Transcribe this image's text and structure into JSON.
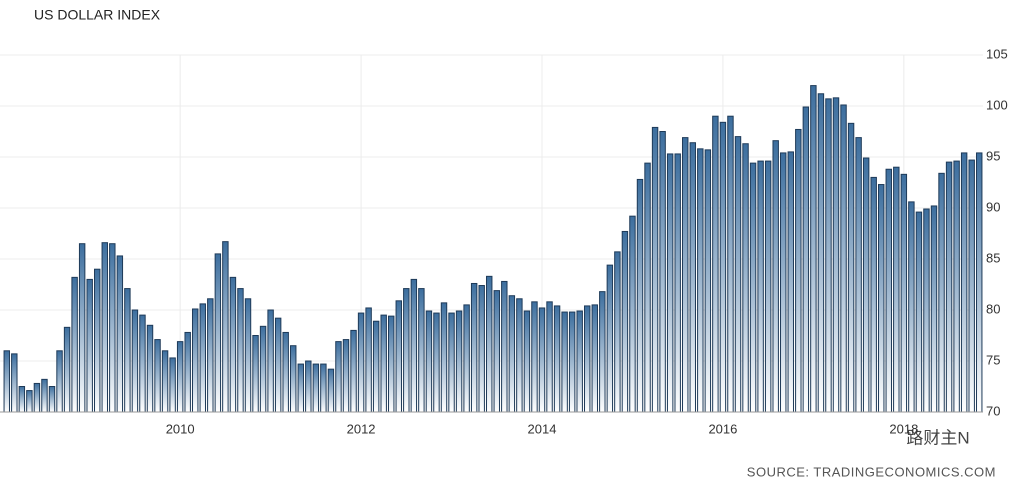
{
  "chart_data": {
    "type": "bar",
    "title": "US DOLLAR INDEX",
    "source": "SOURCE: TRADINGECONOMICS.COM",
    "watermark": "路财主N",
    "categories": [
      null,
      null,
      null,
      null,
      null,
      null,
      null,
      null,
      null,
      null,
      null,
      null,
      null,
      null,
      null,
      null,
      null,
      null,
      null,
      null,
      null,
      null,
      null,
      "2010",
      null,
      null,
      null,
      null,
      null,
      null,
      null,
      null,
      null,
      null,
      null,
      null,
      null,
      null,
      null,
      null,
      null,
      null,
      null,
      null,
      null,
      null,
      null,
      "2012",
      null,
      null,
      null,
      null,
      null,
      null,
      null,
      null,
      null,
      null,
      null,
      null,
      null,
      null,
      null,
      null,
      null,
      null,
      null,
      null,
      null,
      null,
      null,
      "2014",
      null,
      null,
      null,
      null,
      null,
      null,
      null,
      null,
      null,
      null,
      null,
      null,
      null,
      null,
      null,
      null,
      null,
      null,
      null,
      null,
      null,
      null,
      null,
      "2016",
      null,
      null,
      null,
      null,
      null,
      null,
      null,
      null,
      null,
      null,
      null,
      null,
      null,
      null,
      null,
      null,
      null,
      null,
      null,
      null,
      null,
      null,
      null,
      "2018",
      null,
      null,
      null,
      null,
      null,
      null,
      null,
      null,
      null,
      null
    ],
    "values": [
      76,
      75.7,
      72.5,
      72.1,
      72.8,
      73.2,
      72.5,
      76,
      78.3,
      83.2,
      86.5,
      83,
      84,
      86.6,
      86.5,
      85.3,
      82.1,
      80,
      79.5,
      78.5,
      77.1,
      76,
      75.3,
      76.9,
      77.8,
      80.1,
      80.6,
      81.1,
      85.5,
      86.7,
      83.2,
      82.1,
      81.1,
      77.5,
      78.4,
      80,
      79.2,
      77.8,
      76.5,
      74.7,
      75,
      74.7,
      74.7,
      74.2,
      76.9,
      77.1,
      78,
      79.7,
      80.2,
      78.9,
      79.5,
      79.4,
      80.9,
      82.1,
      83,
      82.1,
      79.9,
      79.7,
      80.7,
      79.7,
      79.9,
      80.5,
      82.6,
      82.4,
      83.3,
      81.9,
      82.8,
      81.4,
      81.1,
      79.9,
      80.8,
      80.2,
      80.8,
      80.4,
      79.8,
      79.8,
      79.9,
      80.4,
      80.5,
      81.8,
      84.4,
      85.7,
      87.7,
      89.2,
      92.8,
      94.4,
      97.9,
      97.5,
      95.3,
      95.3,
      96.9,
      96.4,
      95.8,
      95.7,
      99,
      98.4,
      99,
      97,
      96.3,
      94.4,
      94.6,
      94.6,
      96.6,
      95.4,
      95.5,
      97.7,
      99.9,
      102,
      101.2,
      100.7,
      100.8,
      100.1,
      98.3,
      96.9,
      94.9,
      93,
      92.3,
      93.8,
      94,
      93.3,
      90.6,
      89.6,
      89.9,
      90.2,
      93.4,
      94.5,
      94.6,
      95.4,
      94.7,
      95.4
    ],
    "color": "#3c6e9e",
    "ylim": [
      70,
      105
    ],
    "yticks": [
      70,
      75,
      80,
      85,
      90,
      95,
      100,
      105
    ],
    "grid": true
  }
}
